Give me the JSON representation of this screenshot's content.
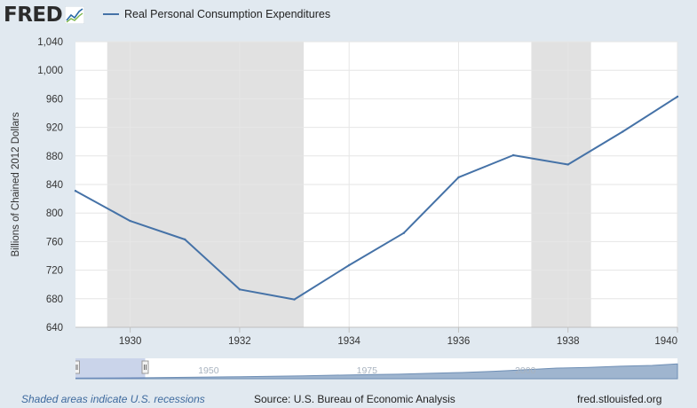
{
  "header": {
    "logo_text": "FRED",
    "logo_icon": "sparkline-graph-icon"
  },
  "colors": {
    "series": "#4572a7",
    "recession": "#e1e1e1",
    "page_bg": "#e1e9f0",
    "grid": "#e6e6e6",
    "navigator_fill": "#9fb5cf",
    "navigator_handle_bg": "#c2d1e8"
  },
  "chart_data": {
    "type": "line",
    "series": [
      {
        "name": "Real Personal Consumption Expenditures",
        "x": [
          1929,
          1930,
          1931,
          1932,
          1933,
          1934,
          1935,
          1936,
          1937,
          1938,
          1939,
          1940
        ],
        "values": [
          831,
          789,
          763,
          693,
          679,
          727,
          772,
          850,
          881,
          868,
          914,
          963
        ]
      }
    ],
    "ylabel": "Billions of Chained 2012 Dollars",
    "xlabel": "",
    "xlim": [
      1929,
      1940
    ],
    "ylim": [
      640,
      1040
    ],
    "yticks": [
      640,
      680,
      720,
      760,
      800,
      840,
      880,
      920,
      960,
      1000,
      1040
    ],
    "ytick_labels": [
      "640",
      "680",
      "720",
      "760",
      "800",
      "840",
      "880",
      "920",
      "960",
      "1,000",
      "1,040"
    ],
    "xticks": [
      1930,
      1932,
      1934,
      1936,
      1938,
      1940
    ],
    "xtick_labels": [
      "1930",
      "1932",
      "1934",
      "1936",
      "1938",
      "1940"
    ],
    "recessions": [
      [
        1929.58,
        1933.17
      ],
      [
        1937.33,
        1938.42
      ]
    ],
    "grid": true,
    "legend_position": "top-left"
  },
  "navigator": {
    "labels": [
      "1950",
      "1975",
      "2000"
    ],
    "label_years": [
      1950,
      1975,
      2000
    ],
    "range": [
      1929,
      2024
    ],
    "selected": [
      1929,
      1940
    ],
    "profile_years": [
      1929,
      1935,
      1940,
      1945,
      1950,
      1955,
      1960,
      1965,
      1970,
      1975,
      1980,
      1985,
      1990,
      1995,
      2000,
      2005,
      2010,
      2015,
      2020,
      2024
    ],
    "profile_values": [
      0.04,
      0.05,
      0.06,
      0.08,
      0.1,
      0.12,
      0.14,
      0.17,
      0.21,
      0.24,
      0.27,
      0.32,
      0.37,
      0.44,
      0.53,
      0.63,
      0.67,
      0.74,
      0.79,
      0.88
    ]
  },
  "footer": {
    "recession_note": "Shaded areas indicate U.S. recessions",
    "source": "Source: U.S. Bureau of Economic Analysis",
    "site": "fred.stlouisfed.org"
  }
}
